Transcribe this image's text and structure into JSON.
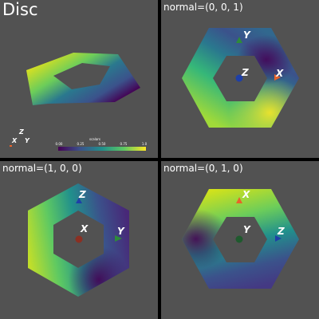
{
  "titles": [
    "Disc",
    "normal=(0, 0, 1)",
    "normal=(1, 0, 0)",
    "normal=(0, 1, 0)"
  ],
  "colorbar": {
    "title": "scalars",
    "ticks": [
      "0.00",
      "0.25",
      "0.50",
      "0.75",
      "1.0"
    ]
  },
  "axis_labels": [
    "X",
    "Y",
    "Z"
  ],
  "colors": {
    "x_axis": "#e8632a",
    "y_axis": "#2e8b3a",
    "z_axis": "#1e3fa8",
    "panel_bg": "#525252"
  }
}
